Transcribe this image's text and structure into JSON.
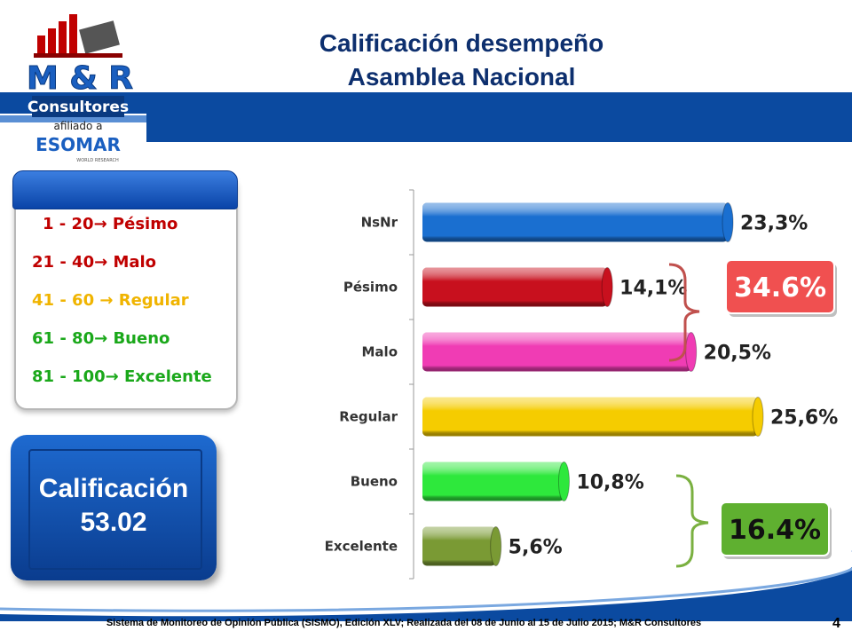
{
  "header": {
    "title_line1": "Calificación desempeño",
    "title_line2": "Asamblea Nacional"
  },
  "logo": {
    "brand": "M & R",
    "name": "Consultores",
    "affiliation": "afiliado a",
    "partner": "ESOMAR",
    "partner_sub": "WORLD RESEARCH",
    "icon": "bar-chart-logo-icon"
  },
  "legend": {
    "items": [
      {
        "label": "1 - 20→  Pésimo",
        "color": "#c00000"
      },
      {
        "label": "21 - 40→  Malo",
        "color": "#c00000"
      },
      {
        "label": "41 - 60 →  Regular",
        "color": "#f0b400"
      },
      {
        "label": "61 - 80→  Bueno",
        "color": "#1aa81a"
      },
      {
        "label": "81 - 100→ Excelente",
        "color": "#1aa81a"
      }
    ]
  },
  "score": {
    "label": "Calificación",
    "value": "53.02"
  },
  "chart_data": {
    "type": "bar",
    "orientation": "horizontal",
    "categories": [
      "NsNr",
      "Pésimo",
      "Malo",
      "Regular",
      "Bueno",
      "Excelente"
    ],
    "values": [
      23.3,
      14.1,
      20.5,
      25.6,
      10.8,
      5.6
    ],
    "labels": [
      "23,3%",
      "14,1%",
      "20,5%",
      "25,6%",
      "10,8%",
      "5,6%"
    ],
    "colors": [
      "#1a6fd0",
      "#c8101e",
      "#f03cb4",
      "#f5cc00",
      "#2ee83c",
      "#7a9a34"
    ],
    "xlim": [
      0,
      30
    ],
    "grid": false,
    "annotations": [
      {
        "text": "34.6%",
        "groups": [
          "Pésimo",
          "Malo"
        ],
        "color": "#f05050"
      },
      {
        "text": "16.4%",
        "groups": [
          "Bueno",
          "Excelente"
        ],
        "color": "#5fb030"
      }
    ]
  },
  "footer": {
    "text": "Sistema de Monitoreo de Opinión Pública (SISMO), Edición XLV; Realizada del 08 de Junio al 15 de Julio 2015; M&R Consultores",
    "page": "4"
  }
}
